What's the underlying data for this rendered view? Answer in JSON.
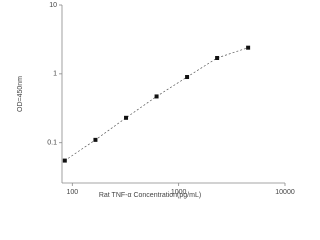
{
  "chart_data": {
    "type": "scatter",
    "log_x": true,
    "log_y": true,
    "x_label": "Rat TNF-α  Concentration(pg/mL)",
    "y_label": "OD=450nm",
    "x": [
      85,
      165,
      320,
      620,
      1200,
      2300,
      4500
    ],
    "values": [
      0.055,
      0.11,
      0.23,
      0.47,
      0.9,
      1.7,
      2.4
    ],
    "color": "#111111",
    "line_style": "dashed",
    "xlim": [
      80,
      10000
    ],
    "xticks": [
      100,
      1000,
      10000
    ],
    "ylim": [
      0.026,
      10
    ],
    "yticks": [
      0.1,
      1,
      10
    ]
  }
}
